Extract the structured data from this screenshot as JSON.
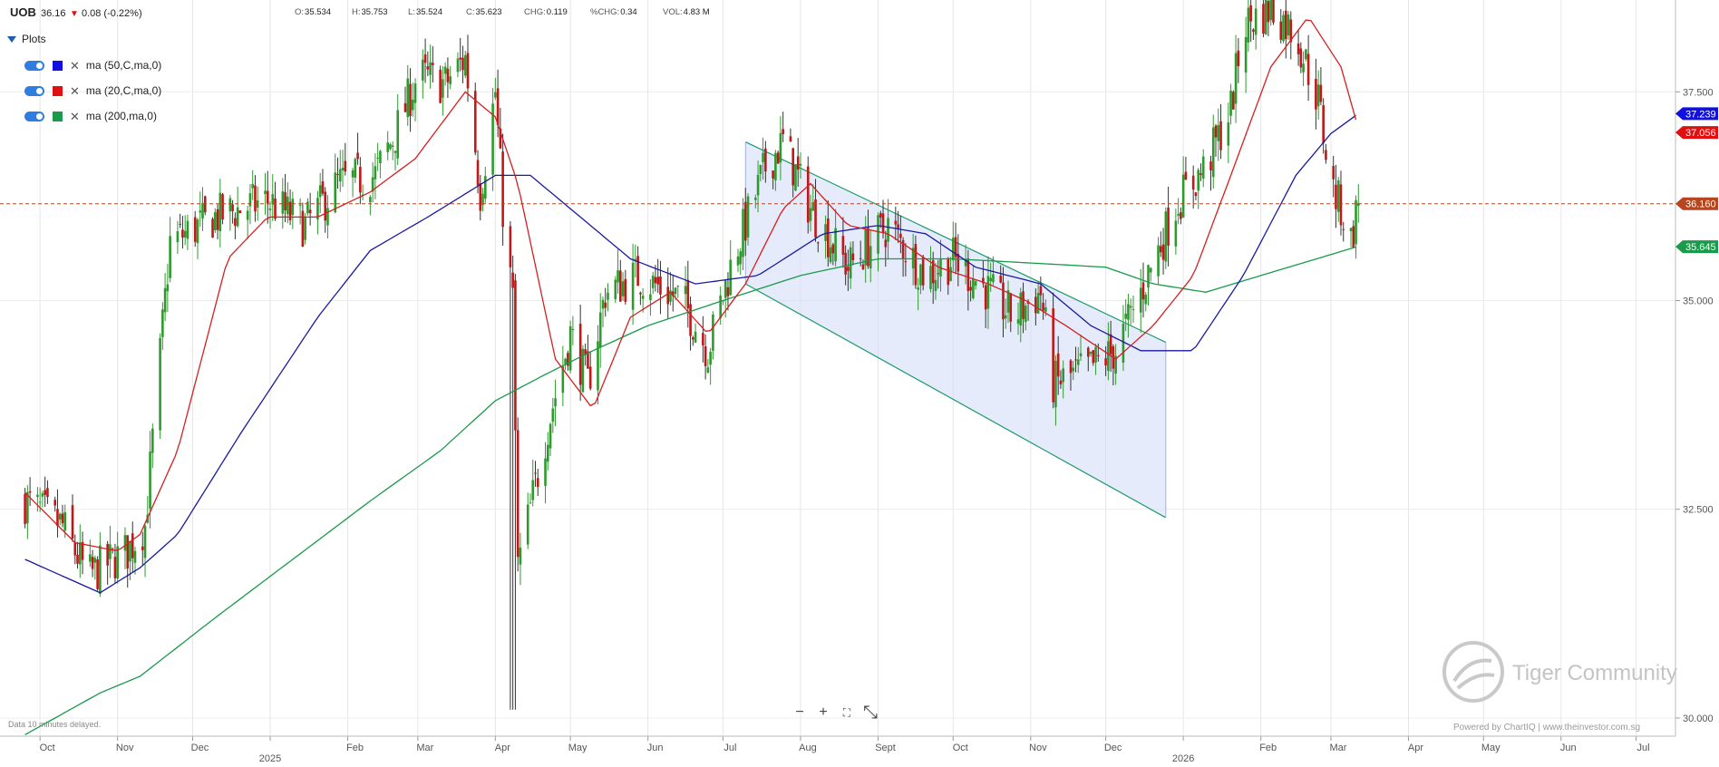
{
  "header": {
    "symbol": "UOB",
    "last": "36.16",
    "change": "0.08 (-0.22%)",
    "change_arrow": "down",
    "stats": [
      {
        "k": "O:",
        "v": "35.534"
      },
      {
        "k": "H:",
        "v": "35.753"
      },
      {
        "k": "L:",
        "v": "35.524"
      },
      {
        "k": "C:",
        "v": "35.623"
      },
      {
        "k": "CHG:",
        "v": "0.119"
      },
      {
        "k": "%CHG:",
        "v": "0.34"
      },
      {
        "k": "VOL:",
        "v": "4.83 M"
      }
    ]
  },
  "plots": {
    "title": "Plots",
    "items": [
      {
        "label": "ma (50,C,ma,0)",
        "color": "#1010e0"
      },
      {
        "label": "ma (20,C,ma,0)",
        "color": "#e01010"
      },
      {
        "label": "ma (200,ma,0)",
        "color": "#1a9a4a"
      }
    ]
  },
  "chart_data": {
    "type": "candlestick",
    "title": "",
    "ylim": [
      29.5,
      38.6
    ],
    "y_ticks": [
      "30.000",
      "32.500",
      "35.000",
      "37.500"
    ],
    "x_ticks": [
      "Oct",
      "Nov",
      "Dec",
      "2025",
      "Feb",
      "Mar",
      "Apr",
      "May",
      "Jun",
      "Jul",
      "Aug",
      "Sept",
      "Oct",
      "Nov",
      "Dec",
      "2026",
      "Feb",
      "Mar",
      "Apr",
      "May",
      "Jun",
      "Jul"
    ],
    "price_tags": [
      {
        "value": "37.239",
        "color": "#1010e0"
      },
      {
        "value": "37.056",
        "color": "#e01010"
      },
      {
        "value": "36.160",
        "color": "#b5461f"
      },
      {
        "value": "35.645",
        "color": "#1a9a4a"
      }
    ],
    "current_price_line": 36.16,
    "ohlc_keys": [
      [
        "2024-09-25",
        32.6
      ],
      [
        "2024-10-10",
        32.3
      ],
      [
        "2024-10-20",
        31.7
      ],
      [
        "2024-11-05",
        32.0
      ],
      [
        "2024-11-12",
        32.3
      ],
      [
        "2024-11-22",
        35.7
      ],
      [
        "2024-12-10",
        36.0
      ],
      [
        "2024-12-31",
        36.2
      ],
      [
        "2025-01-15",
        35.9
      ],
      [
        "2025-01-28",
        36.4
      ],
      [
        "2025-02-12",
        36.5
      ],
      [
        "2025-02-20",
        37.0
      ],
      [
        "2025-03-01",
        37.7
      ],
      [
        "2025-03-12",
        37.6
      ],
      [
        "2025-03-20",
        37.9
      ],
      [
        "2025-03-26",
        36.3
      ],
      [
        "2025-04-01",
        37.5
      ],
      [
        "2025-04-04",
        36.1
      ],
      [
        "2025-04-08",
        35.0
      ],
      [
        "2025-04-10",
        31.8
      ],
      [
        "2025-04-22",
        33.5
      ],
      [
        "2025-05-01",
        34.6
      ],
      [
        "2025-05-08",
        34.0
      ],
      [
        "2025-05-15",
        35.1
      ],
      [
        "2025-05-28",
        35.3
      ],
      [
        "2025-06-15",
        35.0
      ],
      [
        "2025-06-25",
        34.4
      ],
      [
        "2025-07-05",
        35.5
      ],
      [
        "2025-07-18",
        36.6
      ],
      [
        "2025-07-25",
        36.9
      ],
      [
        "2025-08-05",
        36.1
      ],
      [
        "2025-08-20",
        35.4
      ],
      [
        "2025-09-05",
        35.9
      ],
      [
        "2025-09-20",
        35.3
      ],
      [
        "2025-10-01",
        35.5
      ],
      [
        "2025-10-12",
        35.2
      ],
      [
        "2025-10-25",
        34.8
      ],
      [
        "2025-11-05",
        35.1
      ],
      [
        "2025-11-10",
        34.0
      ],
      [
        "2025-11-25",
        34.2
      ],
      [
        "2025-12-05",
        34.4
      ],
      [
        "2025-12-15",
        35.1
      ],
      [
        "2025-12-30",
        36.2
      ],
      [
        "2026-01-10",
        36.6
      ],
      [
        "2026-01-20",
        37.3
      ],
      [
        "2026-01-25",
        38.3
      ],
      [
        "2026-02-05",
        38.5
      ],
      [
        "2026-02-15",
        38.2
      ],
      [
        "2026-02-24",
        37.4
      ],
      [
        "2026-03-01",
        36.4
      ],
      [
        "2026-03-05",
        36.1
      ],
      [
        "2026-03-09",
        35.7
      ],
      [
        "2026-03-12",
        36.2
      ]
    ],
    "ma20_keys": [
      [
        "2024-09-25",
        32.7
      ],
      [
        "2024-10-15",
        32.1
      ],
      [
        "2024-11-01",
        32.0
      ],
      [
        "2024-11-10",
        32.2
      ],
      [
        "2024-11-25",
        33.2
      ],
      [
        "2024-12-15",
        35.5
      ],
      [
        "2024-12-31",
        36.0
      ],
      [
        "2025-01-20",
        36.0
      ],
      [
        "2025-02-10",
        36.3
      ],
      [
        "2025-02-28",
        36.7
      ],
      [
        "2025-03-20",
        37.5
      ],
      [
        "2025-04-01",
        37.2
      ],
      [
        "2025-04-10",
        36.4
      ],
      [
        "2025-04-25",
        34.3
      ],
      [
        "2025-05-10",
        33.7
      ],
      [
        "2025-05-25",
        34.8
      ],
      [
        "2025-06-10",
        35.1
      ],
      [
        "2025-06-25",
        34.6
      ],
      [
        "2025-07-10",
        35.2
      ],
      [
        "2025-07-25",
        36.1
      ],
      [
        "2025-08-05",
        36.4
      ],
      [
        "2025-08-20",
        35.9
      ],
      [
        "2025-09-05",
        35.8
      ],
      [
        "2025-09-25",
        35.4
      ],
      [
        "2025-10-15",
        35.2
      ],
      [
        "2025-10-30",
        35.0
      ],
      [
        "2025-11-15",
        34.7
      ],
      [
        "2025-12-05",
        34.3
      ],
      [
        "2025-12-20",
        34.7
      ],
      [
        "2026-01-05",
        35.3
      ],
      [
        "2026-01-20",
        36.5
      ],
      [
        "2026-02-05",
        37.8
      ],
      [
        "2026-02-20",
        38.4
      ],
      [
        "2026-03-05",
        37.8
      ],
      [
        "2026-03-12",
        37.06
      ]
    ],
    "ma50_keys": [
      [
        "2024-09-25",
        31.9
      ],
      [
        "2024-10-25",
        31.5
      ],
      [
        "2024-11-10",
        31.8
      ],
      [
        "2024-11-25",
        32.2
      ],
      [
        "2024-12-20",
        33.4
      ],
      [
        "2025-01-20",
        34.8
      ],
      [
        "2025-02-10",
        35.6
      ],
      [
        "2025-03-05",
        36.0
      ],
      [
        "2025-04-01",
        36.5
      ],
      [
        "2025-04-15",
        36.5
      ],
      [
        "2025-05-05",
        36.0
      ],
      [
        "2025-05-25",
        35.5
      ],
      [
        "2025-06-20",
        35.2
      ],
      [
        "2025-07-15",
        35.3
      ],
      [
        "2025-08-10",
        35.8
      ],
      [
        "2025-09-01",
        35.9
      ],
      [
        "2025-09-20",
        35.8
      ],
      [
        "2025-10-10",
        35.4
      ],
      [
        "2025-11-05",
        35.2
      ],
      [
        "2025-11-25",
        34.7
      ],
      [
        "2025-12-15",
        34.4
      ],
      [
        "2026-01-05",
        34.4
      ],
      [
        "2026-01-25",
        35.3
      ],
      [
        "2026-02-15",
        36.5
      ],
      [
        "2026-03-01",
        37.0
      ],
      [
        "2026-03-12",
        37.24
      ]
    ],
    "ma200_keys": [
      [
        "2024-09-25",
        29.8
      ],
      [
        "2024-10-25",
        30.3
      ],
      [
        "2024-11-10",
        30.5
      ],
      [
        "2024-12-10",
        31.2
      ],
      [
        "2025-01-10",
        31.9
      ],
      [
        "2025-02-10",
        32.6
      ],
      [
        "2025-03-10",
        33.2
      ],
      [
        "2025-04-01",
        33.8
      ],
      [
        "2025-04-20",
        34.1
      ],
      [
        "2025-05-10",
        34.4
      ],
      [
        "2025-06-01",
        34.7
      ],
      [
        "2025-07-01",
        35.0
      ],
      [
        "2025-08-01",
        35.3
      ],
      [
        "2025-09-01",
        35.5
      ],
      [
        "2025-10-01",
        35.5
      ],
      [
        "2025-11-01",
        35.45
      ],
      [
        "2025-12-01",
        35.4
      ],
      [
        "2025-12-20",
        35.2
      ],
      [
        "2026-01-10",
        35.1
      ],
      [
        "2026-02-01",
        35.3
      ],
      [
        "2026-03-12",
        35.65
      ]
    ],
    "channel": {
      "upper": [
        [
          "2025-07-10",
          36.9
        ],
        [
          "2025-12-25",
          34.5
        ]
      ],
      "lower": [
        [
          "2025-07-10",
          35.2
        ],
        [
          "2025-12-25",
          32.4
        ]
      ],
      "fill": "#cfdaf6"
    }
  },
  "footer": {
    "delayed": "Data 10 minutes delayed.",
    "zoom_out": "−",
    "zoom_in": "+",
    "fit": "⛶",
    "expand": "⤡",
    "watermark": "Tiger Community",
    "powered": "Powered by ChartIQ | www.theinvestor.com.sg"
  }
}
